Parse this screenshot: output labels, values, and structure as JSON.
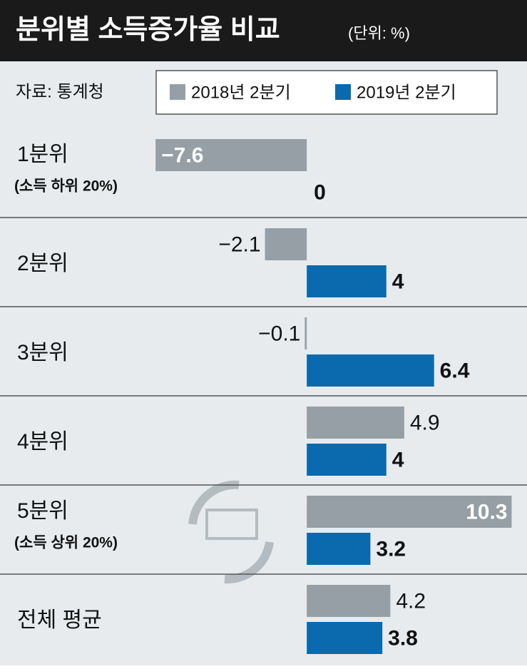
{
  "chart_data": {
    "type": "bar",
    "orientation": "horizontal",
    "title": "분위별 소득증가율 비교",
    "subtitle": "(단위: %)",
    "source": "자료: 통계청",
    "categories": [
      "1분위",
      "2분위",
      "3분위",
      "4분위",
      "5분위",
      "전체 평균"
    ],
    "category_notes": [
      "(소득 하위 20%)",
      null,
      null,
      null,
      "(소득 상위 20%)",
      null
    ],
    "series": [
      {
        "name": "2018년 2분기",
        "color": "#959fa5",
        "values": [
          -7.6,
          -2.1,
          -0.1,
          4.9,
          10.3,
          4.2
        ],
        "value_labels": [
          "−7.6",
          "−2.1",
          "−0.1",
          "4.9",
          "10.3",
          "4.2"
        ]
      },
      {
        "name": "2019년 2분기",
        "color": "#0a6aad",
        "values": [
          0,
          4,
          6.4,
          4,
          3.2,
          3.8
        ]
      }
    ],
    "xlim": [
      -8,
      11
    ],
    "grid": false
  }
}
